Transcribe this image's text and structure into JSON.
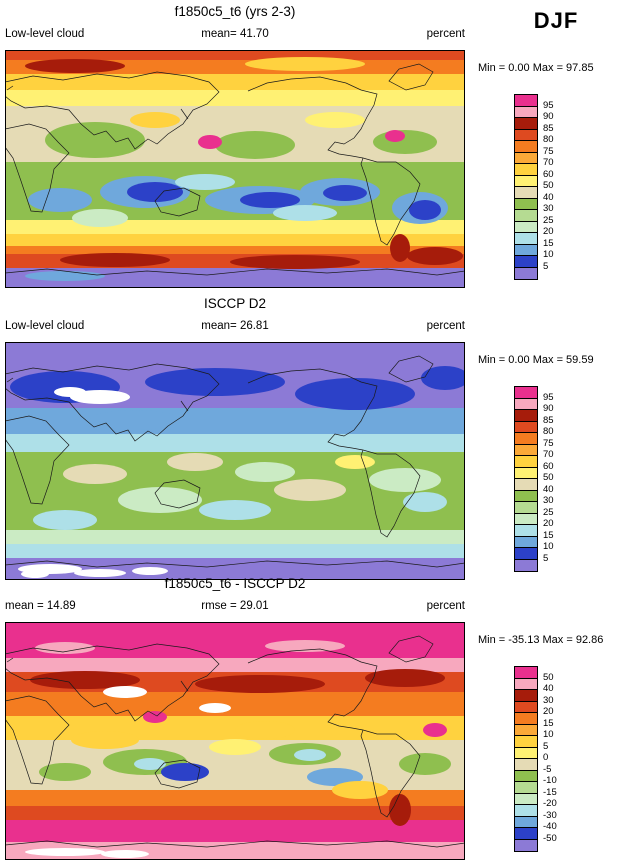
{
  "season": "DJF",
  "panels": [
    {
      "title": "f1850c5_t6 (yrs 2-3)",
      "left_text": "Low-level cloud",
      "center_text": "mean= 41.70",
      "units": "percent",
      "minmax": "Min = 0.00 Max = 97.85"
    },
    {
      "title": "ISCCP D2",
      "left_text": "Low-level cloud",
      "center_text": "mean= 26.81",
      "units": "percent",
      "minmax": "Min = 0.00 Max = 59.59"
    },
    {
      "title": "f1850c5_t6 - ISCCP D2",
      "left_text": "mean = 14.89",
      "center_text": "rmse = 29.01",
      "units": "percent",
      "minmax": "Min = -35.13 Max = 92.86"
    }
  ],
  "chart_data": [
    {
      "type": "heatmap",
      "kind": "global-filled-contour-map",
      "projection": "equirectangular-lon-0-360",
      "title": "f1850c5_t6 (yrs 2-3)",
      "variable": "Low-level cloud",
      "season": "DJF",
      "units": "percent",
      "mean": 41.7,
      "min": 0.0,
      "max": 97.85,
      "colorbar_labels": [
        95,
        90,
        85,
        80,
        75,
        70,
        60,
        50,
        40,
        30,
        25,
        20,
        15,
        10,
        5
      ],
      "colorbar_colors_top_to_bottom": [
        "#E9308E",
        "#F7A8BE",
        "#A61C0B",
        "#DE4A20",
        "#F47C20",
        "#FBA938",
        "#FFD23F",
        "#FFF173",
        "#E5DBB5",
        "#8FBF4F",
        "#B5DB92",
        "#CBEBC4",
        "#AEE0E8",
        "#6FA8DC",
        "#2C41C8",
        "#8C7AD6"
      ],
      "legend_position": "right"
    },
    {
      "type": "heatmap",
      "kind": "global-filled-contour-map",
      "projection": "equirectangular-lon-0-360",
      "title": "ISCCP D2",
      "variable": "Low-level cloud",
      "season": "DJF",
      "units": "percent",
      "mean": 26.81,
      "min": 0.0,
      "max": 59.59,
      "colorbar_labels": [
        95,
        90,
        85,
        80,
        75,
        70,
        60,
        50,
        40,
        30,
        25,
        20,
        15,
        10,
        5
      ],
      "colorbar_colors_top_to_bottom": [
        "#E9308E",
        "#F7A8BE",
        "#A61C0B",
        "#DE4A20",
        "#F47C20",
        "#FBA938",
        "#FFD23F",
        "#FFF173",
        "#E5DBB5",
        "#8FBF4F",
        "#B5DB92",
        "#CBEBC4",
        "#AEE0E8",
        "#6FA8DC",
        "#2C41C8",
        "#8C7AD6"
      ],
      "legend_position": "right"
    },
    {
      "type": "heatmap",
      "kind": "global-filled-contour-difference-map",
      "projection": "equirectangular-lon-0-360",
      "title": "f1850c5_t6 - ISCCP D2",
      "season": "DJF",
      "units": "percent",
      "mean": 14.89,
      "rmse": 29.01,
      "min": -35.13,
      "max": 92.86,
      "colorbar_labels": [
        50,
        40,
        30,
        20,
        15,
        10,
        5,
        0,
        -5,
        -10,
        -15,
        -20,
        -30,
        -40,
        -50
      ],
      "colorbar_colors_top_to_bottom": [
        "#E9308E",
        "#F7A8BE",
        "#A61C0B",
        "#DE4A20",
        "#F47C20",
        "#FBA938",
        "#FFD23F",
        "#FFF173",
        "#E5DBB5",
        "#8FBF4F",
        "#B5DB92",
        "#CBEBC4",
        "#AEE0E8",
        "#6FA8DC",
        "#2C41C8",
        "#8C7AD6"
      ],
      "legend_position": "right"
    }
  ]
}
